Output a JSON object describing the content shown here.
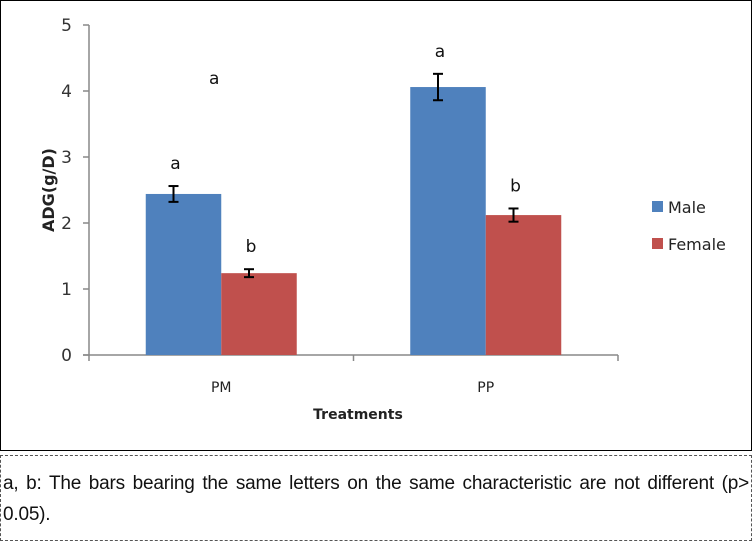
{
  "chart_data": {
    "type": "bar",
    "title": "",
    "xlabel": "Treatments",
    "ylabel": "ADG(g/D)",
    "ylim": [
      0,
      5
    ],
    "yticks": [
      "0",
      "1",
      "2",
      "3",
      "4",
      "5"
    ],
    "categories": [
      "PM",
      "PP"
    ],
    "series": [
      {
        "name": "Male",
        "color": "#4f81bd",
        "values": [
          2.44,
          4.06
        ],
        "errors": [
          0.12,
          0.2
        ],
        "letters": [
          "a",
          "a"
        ]
      },
      {
        "name": "Female",
        "color": "#c0504d",
        "values": [
          1.24,
          2.12
        ],
        "errors": [
          0.06,
          0.1
        ],
        "letters": [
          "b",
          "b"
        ]
      }
    ],
    "extra_annotation": {
      "text": "a",
      "category": "PM",
      "y": 4.2
    },
    "grid": false,
    "legend_position": "right"
  },
  "caption": "a, b: The bars bearing the same letters on the same characteristic are not different (p> 0.05)."
}
